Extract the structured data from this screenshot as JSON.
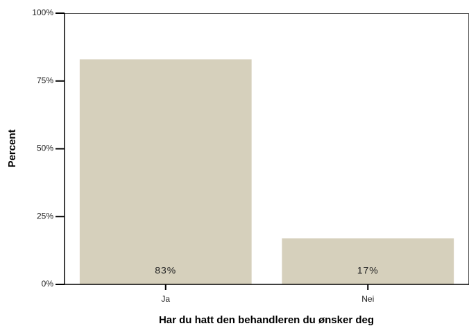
{
  "chart_data": {
    "type": "bar",
    "categories": [
      "Ja",
      "Nei"
    ],
    "values": [
      83,
      17
    ],
    "value_labels": [
      "83%",
      "17%"
    ],
    "color": "#d6d0bc",
    "xlabel": "Har du hatt den behandleren du ønsker deg",
    "ylabel": "Percent",
    "ylim": [
      0,
      100
    ],
    "yticks": [
      {
        "value": 0,
        "label": "0%"
      },
      {
        "value": 25,
        "label": "25%"
      },
      {
        "value": 50,
        "label": "50%"
      },
      {
        "value": 75,
        "label": "75%"
      },
      {
        "value": 100,
        "label": "100%"
      }
    ],
    "grid": false
  }
}
